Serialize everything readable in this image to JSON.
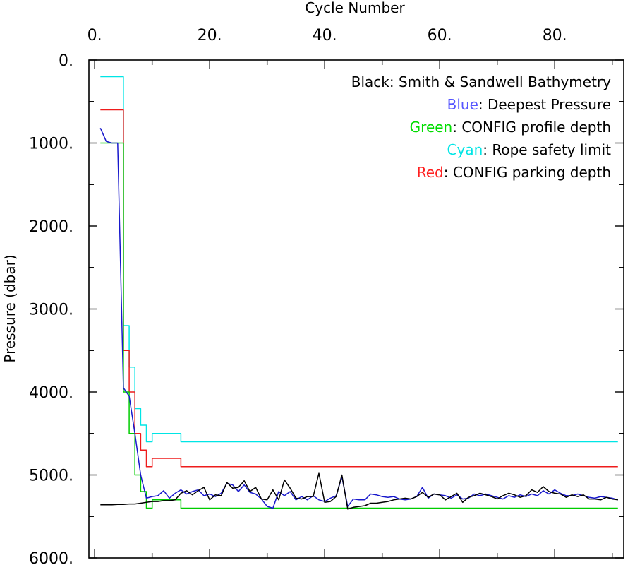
{
  "chart_data": {
    "type": "line",
    "xlabel": "Cycle Number",
    "ylabel": "Pressure (dbar)",
    "xlim": [
      -1,
      92
    ],
    "ylim": [
      6000,
      0
    ],
    "x_axis_position": "top",
    "y_inverted": true,
    "grid": false,
    "xticks": [
      0,
      20,
      40,
      60,
      80
    ],
    "xtick_labels": [
      "0.",
      "20.",
      "40.",
      "60.",
      "80."
    ],
    "yticks": [
      0,
      1000,
      2000,
      3000,
      4000,
      5000,
      6000
    ],
    "ytick_labels": [
      "0.",
      "1000.",
      "2000.",
      "3000.",
      "4000.",
      "5000.",
      "6000."
    ],
    "legend": {
      "placement": "top-right",
      "entries": [
        {
          "series": "bathymetry",
          "color_word": "Black",
          "rest": ": Smith & Sandwell Bathymetry",
          "word_color": "#000000"
        },
        {
          "series": "deepest_pressure",
          "color_word": "Blue",
          "rest": ": Deepest Pressure",
          "word_color": "#5555ff"
        },
        {
          "series": "profile_depth",
          "color_word": "Green",
          "rest": ": CONFIG profile depth",
          "word_color": "#00dd00"
        },
        {
          "series": "rope_limit",
          "color_word": "Cyan",
          "rest": ": Rope safety limit",
          "word_color": "#00e5e5"
        },
        {
          "series": "parking_depth",
          "color_word": "Red",
          "rest": ": CONFIG parking depth",
          "word_color": "#ff2020"
        }
      ]
    },
    "series": [
      {
        "id": "rope_limit",
        "color": "#00e5e5",
        "step": true,
        "x": [
          1,
          4,
          5,
          6,
          7,
          8,
          9,
          10,
          14,
          15,
          91
        ],
        "y": [
          200,
          200,
          3200,
          3700,
          4200,
          4400,
          4600,
          4500,
          4500,
          4600,
          4600
        ]
      },
      {
        "id": "parking_depth",
        "color": "#ee1c1c",
        "step": true,
        "x": [
          1,
          4,
          5,
          6,
          7,
          8,
          9,
          10,
          14,
          15,
          91
        ],
        "y": [
          600,
          600,
          3500,
          4000,
          4500,
          4700,
          4900,
          4800,
          4800,
          4900,
          4900
        ]
      },
      {
        "id": "profile_depth",
        "color": "#00cc00",
        "step": true,
        "x": [
          1,
          4,
          5,
          6,
          7,
          8,
          9,
          10,
          14,
          15,
          91
        ],
        "y": [
          1000,
          1000,
          4000,
          4500,
          5000,
          5200,
          5400,
          5300,
          5300,
          5400,
          5400
        ]
      },
      {
        "id": "deepest_pressure",
        "color": "#1818cc",
        "step": false,
        "x": [
          1,
          2,
          3,
          4,
          5,
          6,
          7,
          8,
          9,
          10,
          11,
          12,
          13,
          14,
          15,
          16,
          17,
          18,
          19,
          20,
          21,
          22,
          23,
          24,
          25,
          26,
          27,
          28,
          29,
          30,
          31,
          32,
          33,
          34,
          35,
          36,
          37,
          38,
          39,
          40,
          41,
          42,
          43,
          44,
          45,
          46,
          47,
          48,
          49,
          50,
          51,
          52,
          53,
          54,
          55,
          56,
          57,
          58,
          59,
          60,
          61,
          62,
          63,
          64,
          65,
          66,
          67,
          68,
          69,
          70,
          71,
          72,
          73,
          74,
          75,
          76,
          77,
          78,
          79,
          80,
          81,
          82,
          83,
          84,
          85,
          86,
          87,
          88,
          89,
          90,
          91
        ],
        "y": [
          820,
          980,
          1000,
          1000,
          3950,
          4050,
          4500,
          5000,
          5280,
          5260,
          5250,
          5190,
          5280,
          5220,
          5180,
          5230,
          5200,
          5180,
          5250,
          5230,
          5260,
          5220,
          5100,
          5120,
          5200,
          5120,
          5210,
          5230,
          5290,
          5380,
          5400,
          5200,
          5250,
          5200,
          5300,
          5260,
          5300,
          5250,
          5300,
          5320,
          5280,
          5250,
          5020,
          5380,
          5290,
          5300,
          5300,
          5230,
          5240,
          5260,
          5270,
          5260,
          5290,
          5300,
          5290,
          5260,
          5150,
          5280,
          5230,
          5240,
          5250,
          5280,
          5240,
          5290,
          5280,
          5230,
          5250,
          5230,
          5250,
          5270,
          5290,
          5250,
          5270,
          5240,
          5260,
          5230,
          5250,
          5190,
          5230,
          5180,
          5220,
          5250,
          5250,
          5230,
          5250,
          5270,
          5280,
          5260,
          5270,
          5280,
          5300
        ]
      },
      {
        "id": "bathymetry",
        "color": "#000000",
        "step": false,
        "x": [
          1,
          2,
          3,
          4,
          5,
          6,
          7,
          8,
          9,
          10,
          11,
          12,
          13,
          14,
          15,
          16,
          17,
          18,
          19,
          20,
          21,
          22,
          23,
          24,
          25,
          26,
          27,
          28,
          29,
          30,
          31,
          32,
          33,
          34,
          35,
          36,
          37,
          38,
          39,
          40,
          41,
          42,
          43,
          44,
          45,
          46,
          47,
          48,
          49,
          50,
          51,
          52,
          53,
          54,
          55,
          56,
          57,
          58,
          59,
          60,
          61,
          62,
          63,
          64,
          65,
          66,
          67,
          68,
          69,
          70,
          71,
          72,
          73,
          74,
          75,
          76,
          77,
          78,
          79,
          80,
          81,
          82,
          83,
          84,
          85,
          86,
          87,
          88,
          89,
          90,
          91
        ],
        "y": [
          5360,
          5360,
          5360,
          5355,
          5355,
          5350,
          5350,
          5340,
          5330,
          5320,
          5320,
          5310,
          5310,
          5300,
          5220,
          5190,
          5240,
          5190,
          5150,
          5300,
          5240,
          5250,
          5090,
          5160,
          5150,
          5070,
          5200,
          5150,
          5290,
          5300,
          5180,
          5300,
          5060,
          5160,
          5280,
          5290,
          5260,
          5260,
          4980,
          5330,
          5320,
          5260,
          5000,
          5410,
          5390,
          5380,
          5370,
          5340,
          5340,
          5330,
          5320,
          5300,
          5290,
          5280,
          5290,
          5260,
          5210,
          5270,
          5230,
          5240,
          5300,
          5260,
          5220,
          5330,
          5270,
          5250,
          5220,
          5240,
          5260,
          5290,
          5250,
          5220,
          5240,
          5270,
          5250,
          5180,
          5210,
          5140,
          5200,
          5220,
          5230,
          5270,
          5240,
          5260,
          5240,
          5290,
          5290,
          5300,
          5270,
          5290,
          5300
        ]
      }
    ]
  }
}
